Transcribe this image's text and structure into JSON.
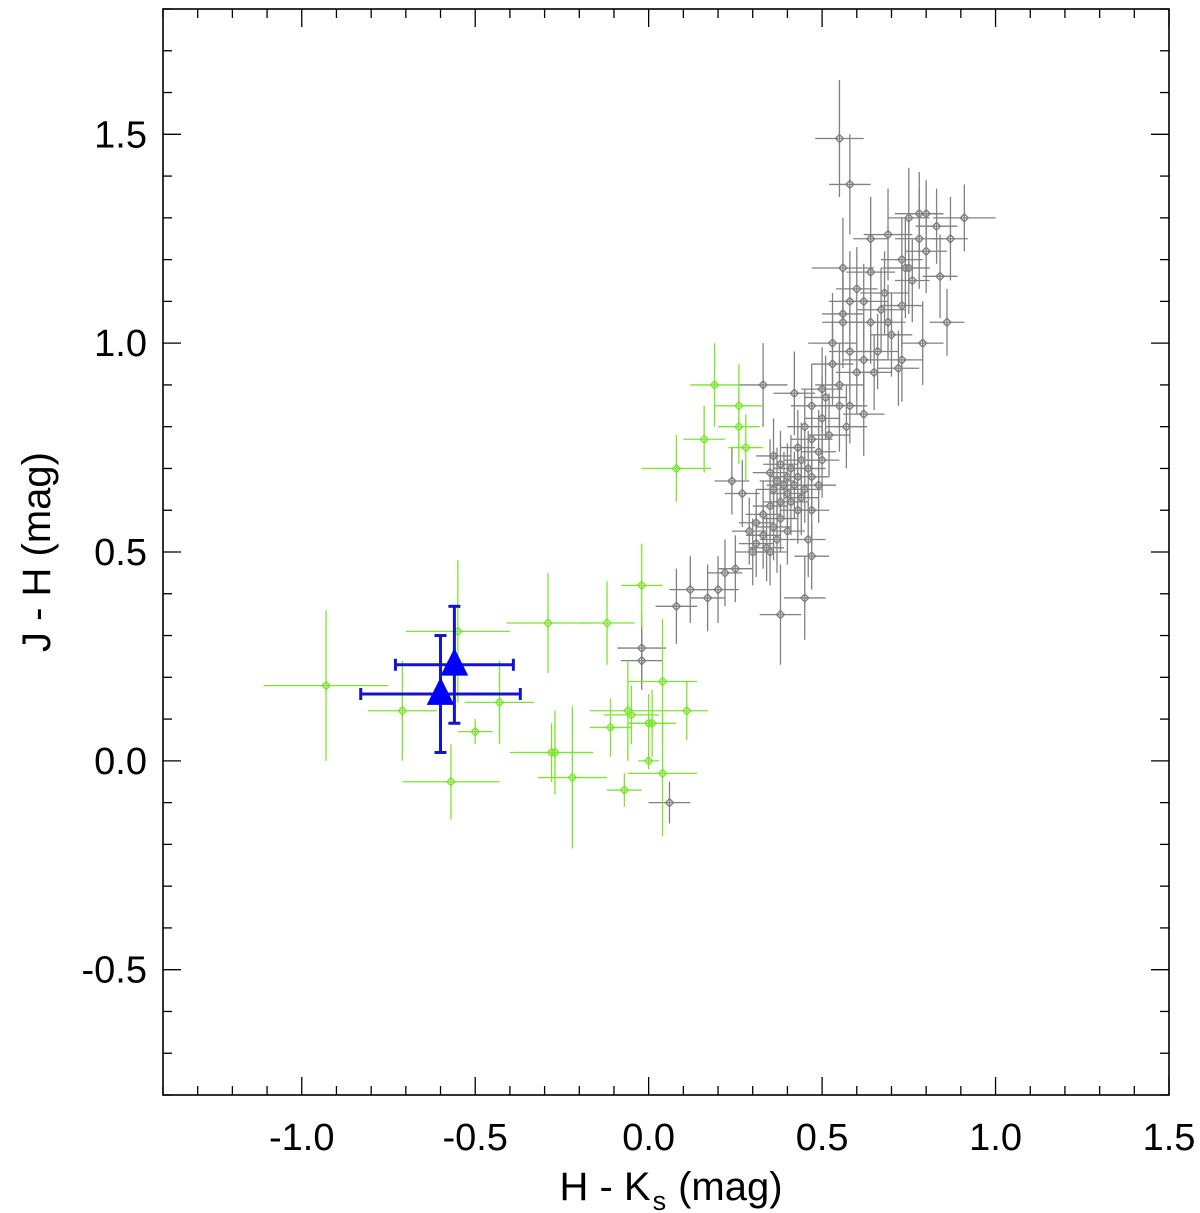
{
  "chart_data": {
    "type": "scatter",
    "title": "",
    "xlabel": "H - K",
    "xlabel_sub": "s",
    "xlabel_unit": "(mag)",
    "ylabel": "J - H (mag)",
    "xlim": [
      -1.4,
      1.5
    ],
    "ylim": [
      -0.8,
      1.8
    ],
    "x_ticks": [
      {
        "value": -1.0,
        "label": "-1.0"
      },
      {
        "value": -0.5,
        "label": "-0.5"
      },
      {
        "value": 0.0,
        "label": "0.0"
      },
      {
        "value": 0.5,
        "label": "0.5"
      },
      {
        "value": 1.0,
        "label": "1.0"
      },
      {
        "value": 1.5,
        "label": "1.5"
      }
    ],
    "y_ticks": [
      {
        "value": -0.5,
        "label": "-0.5"
      },
      {
        "value": 0.0,
        "label": "0.0"
      },
      {
        "value": 0.5,
        "label": "0.5"
      },
      {
        "value": 1.0,
        "label": "1.0"
      },
      {
        "value": 1.5,
        "label": "1.5"
      }
    ],
    "minor_x_step": 0.1,
    "minor_y_step": 0.1,
    "grid": false,
    "colors": {
      "gray": "#808080",
      "green": "#7ce62c",
      "blue": "#1414c8",
      "blue_fill": "#0000ff"
    },
    "series": [
      {
        "color": "#808080",
        "marker": "diamond-open",
        "points": [
          [
            0.55,
            1.49,
            0.07,
            0.14
          ],
          [
            0.58,
            1.38,
            0.06,
            0.12
          ],
          [
            0.91,
            1.3,
            0.09,
            0.08
          ],
          [
            0.78,
            1.31,
            0.07,
            0.1
          ],
          [
            0.8,
            1.31,
            0.05,
            0.08
          ],
          [
            0.75,
            1.3,
            0.06,
            0.12
          ],
          [
            0.83,
            1.28,
            0.06,
            0.09
          ],
          [
            0.78,
            1.25,
            0.07,
            0.12
          ],
          [
            0.87,
            1.25,
            0.05,
            0.1
          ],
          [
            0.64,
            1.25,
            0.05,
            0.1
          ],
          [
            0.69,
            1.26,
            0.07,
            0.11
          ],
          [
            0.73,
            1.2,
            0.06,
            0.1
          ],
          [
            0.74,
            1.18,
            0.07,
            0.12
          ],
          [
            0.8,
            1.22,
            0.06,
            0.1
          ],
          [
            0.75,
            1.18,
            0.06,
            0.11
          ],
          [
            0.56,
            1.18,
            0.09,
            0.12
          ],
          [
            0.64,
            1.17,
            0.07,
            0.09
          ],
          [
            0.76,
            1.15,
            0.05,
            0.1
          ],
          [
            0.84,
            1.16,
            0.05,
            0.1
          ],
          [
            0.6,
            1.13,
            0.06,
            0.1
          ],
          [
            0.68,
            1.12,
            0.07,
            0.1
          ],
          [
            0.58,
            1.1,
            0.06,
            0.12
          ],
          [
            0.73,
            1.09,
            0.06,
            0.1
          ],
          [
            0.62,
            1.1,
            0.07,
            0.09
          ],
          [
            0.67,
            1.08,
            0.07,
            0.1
          ],
          [
            0.56,
            1.07,
            0.06,
            0.1
          ],
          [
            0.64,
            1.05,
            0.06,
            0.1
          ],
          [
            0.56,
            1.05,
            0.06,
            0.11
          ],
          [
            0.69,
            1.05,
            0.05,
            0.09
          ],
          [
            0.86,
            1.05,
            0.05,
            0.08
          ],
          [
            0.7,
            1.02,
            0.06,
            0.1
          ],
          [
            0.79,
            1.0,
            0.06,
            0.1
          ],
          [
            0.53,
            1.0,
            0.07,
            0.12
          ],
          [
            0.58,
            0.98,
            0.06,
            0.1
          ],
          [
            0.66,
            0.98,
            0.06,
            0.09
          ],
          [
            0.73,
            0.96,
            0.06,
            0.1
          ],
          [
            0.53,
            0.95,
            0.06,
            0.1
          ],
          [
            0.62,
            0.96,
            0.06,
            0.1
          ],
          [
            0.72,
            0.94,
            0.06,
            0.09
          ],
          [
            0.6,
            0.93,
            0.06,
            0.1
          ],
          [
            0.65,
            0.93,
            0.05,
            0.09
          ],
          [
            0.55,
            0.9,
            0.07,
            0.1
          ],
          [
            0.33,
            0.9,
            0.07,
            0.1
          ],
          [
            0.5,
            0.89,
            0.06,
            0.1
          ],
          [
            0.42,
            0.88,
            0.06,
            0.1
          ],
          [
            0.51,
            0.87,
            0.06,
            0.1
          ],
          [
            0.55,
            0.85,
            0.06,
            0.11
          ],
          [
            0.47,
            0.85,
            0.06,
            0.1
          ],
          [
            0.58,
            0.85,
            0.05,
            0.09
          ],
          [
            0.62,
            0.83,
            0.06,
            0.1
          ],
          [
            0.5,
            0.82,
            0.05,
            0.1
          ],
          [
            0.57,
            0.8,
            0.06,
            0.1
          ],
          [
            0.45,
            0.8,
            0.05,
            0.09
          ],
          [
            0.52,
            0.78,
            0.06,
            0.1
          ],
          [
            0.47,
            0.77,
            0.06,
            0.09
          ],
          [
            0.43,
            0.75,
            0.05,
            0.09
          ],
          [
            0.49,
            0.74,
            0.05,
            0.1
          ],
          [
            0.36,
            0.73,
            0.05,
            0.09
          ],
          [
            0.44,
            0.72,
            0.05,
            0.09
          ],
          [
            0.5,
            0.72,
            0.05,
            0.09
          ],
          [
            0.38,
            0.71,
            0.05,
            0.08
          ],
          [
            0.41,
            0.7,
            0.05,
            0.08
          ],
          [
            0.46,
            0.7,
            0.05,
            0.09
          ],
          [
            0.35,
            0.69,
            0.05,
            0.08
          ],
          [
            0.4,
            0.68,
            0.05,
            0.08
          ],
          [
            0.43,
            0.68,
            0.05,
            0.08
          ],
          [
            0.47,
            0.68,
            0.05,
            0.09
          ],
          [
            0.37,
            0.67,
            0.05,
            0.08
          ],
          [
            0.39,
            0.66,
            0.05,
            0.08
          ],
          [
            0.42,
            0.66,
            0.05,
            0.08
          ],
          [
            0.45,
            0.65,
            0.05,
            0.08
          ],
          [
            0.49,
            0.66,
            0.05,
            0.09
          ],
          [
            0.24,
            0.67,
            0.05,
            0.08
          ],
          [
            0.36,
            0.65,
            0.05,
            0.08
          ],
          [
            0.4,
            0.64,
            0.05,
            0.08
          ],
          [
            0.44,
            0.63,
            0.05,
            0.09
          ],
          [
            0.27,
            0.64,
            0.05,
            0.08
          ],
          [
            0.38,
            0.62,
            0.05,
            0.08
          ],
          [
            0.41,
            0.62,
            0.05,
            0.08
          ],
          [
            0.35,
            0.61,
            0.05,
            0.08
          ],
          [
            0.43,
            0.6,
            0.05,
            0.08
          ],
          [
            0.47,
            0.6,
            0.05,
            0.08
          ],
          [
            0.33,
            0.59,
            0.05,
            0.08
          ],
          [
            0.38,
            0.58,
            0.05,
            0.08
          ],
          [
            0.31,
            0.57,
            0.05,
            0.08
          ],
          [
            0.36,
            0.56,
            0.05,
            0.08
          ],
          [
            0.4,
            0.55,
            0.05,
            0.08
          ],
          [
            0.29,
            0.55,
            0.05,
            0.08
          ],
          [
            0.33,
            0.54,
            0.05,
            0.08
          ],
          [
            0.37,
            0.53,
            0.05,
            0.08
          ],
          [
            0.46,
            0.53,
            0.05,
            0.09
          ],
          [
            0.31,
            0.52,
            0.05,
            0.08
          ],
          [
            0.34,
            0.51,
            0.05,
            0.08
          ],
          [
            0.3,
            0.5,
            0.05,
            0.08
          ],
          [
            0.35,
            0.5,
            0.05,
            0.08
          ],
          [
            0.47,
            0.49,
            0.05,
            0.08
          ],
          [
            0.25,
            0.46,
            0.05,
            0.08
          ],
          [
            0.22,
            0.45,
            0.05,
            0.08
          ],
          [
            0.2,
            0.41,
            0.06,
            0.08
          ],
          [
            0.12,
            0.41,
            0.06,
            0.08
          ],
          [
            0.17,
            0.39,
            0.05,
            0.08
          ],
          [
            0.08,
            0.37,
            0.06,
            0.09
          ],
          [
            0.45,
            0.39,
            0.06,
            0.1
          ],
          [
            0.38,
            0.35,
            0.06,
            0.12
          ],
          [
            -0.02,
            0.27,
            0.07,
            0.08
          ],
          [
            -0.02,
            0.24,
            0.06,
            0.07
          ],
          [
            0.06,
            -0.1,
            0.06,
            0.05
          ]
        ]
      },
      {
        "color": "#7ce62c",
        "marker": "diamond-open",
        "points": [
          [
            0.19,
            0.9,
            0.07,
            0.1
          ],
          [
            0.26,
            0.85,
            0.07,
            0.1
          ],
          [
            0.26,
            0.8,
            0.06,
            0.09
          ],
          [
            0.16,
            0.77,
            0.06,
            0.08
          ],
          [
            0.28,
            0.75,
            0.05,
            0.08
          ],
          [
            0.08,
            0.7,
            0.1,
            0.08
          ],
          [
            -0.12,
            0.33,
            0.08,
            0.1
          ],
          [
            -0.29,
            0.33,
            0.12,
            0.12
          ],
          [
            -0.55,
            0.31,
            0.15,
            0.17
          ],
          [
            -0.93,
            0.18,
            0.18,
            0.18
          ],
          [
            -0.71,
            0.12,
            0.1,
            0.12
          ],
          [
            -0.43,
            0.14,
            0.1,
            0.1
          ],
          [
            -0.5,
            0.07,
            0.05,
            0.03
          ],
          [
            -0.57,
            -0.05,
            0.14,
            0.09
          ],
          [
            -0.27,
            0.02,
            0.11,
            0.1
          ],
          [
            -0.28,
            0.02,
            0.12,
            0.07
          ],
          [
            -0.22,
            -0.04,
            0.1,
            0.17
          ],
          [
            -0.02,
            0.42,
            0.06,
            0.1
          ],
          [
            -0.06,
            0.12,
            0.11,
            0.12
          ],
          [
            -0.11,
            0.08,
            0.06,
            0.07
          ],
          [
            -0.05,
            0.11,
            0.08,
            0.07
          ],
          [
            0.01,
            0.09,
            0.07,
            0.08
          ],
          [
            0.0,
            0.09,
            0.06,
            0.07
          ],
          [
            0.04,
            0.19,
            0.1,
            0.15
          ],
          [
            0.11,
            0.12,
            0.06,
            0.07
          ],
          [
            0.04,
            -0.03,
            0.1,
            0.15
          ],
          [
            0.0,
            0.0,
            0.03,
            0.02
          ],
          [
            -0.07,
            -0.07,
            0.05,
            0.04
          ]
        ]
      },
      {
        "color": "#1414c8",
        "marker": "triangle-filled",
        "points": [
          [
            -0.56,
            0.23,
            0.17,
            0.14
          ],
          [
            -0.6,
            0.16,
            0.23,
            0.14
          ]
        ]
      }
    ]
  }
}
